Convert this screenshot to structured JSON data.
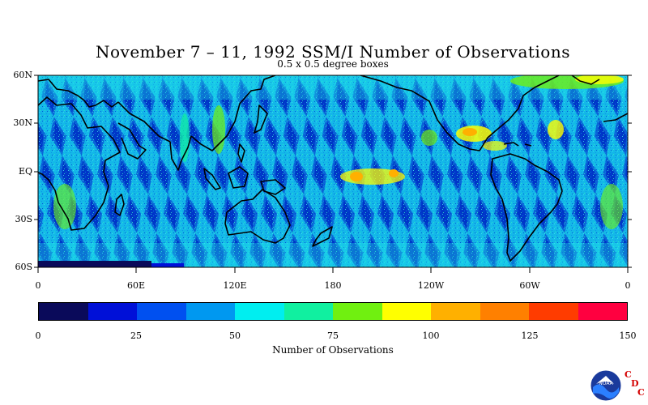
{
  "title": "November 7 – 11, 1992 SSM/I Number of Observations",
  "subtitle": "0.5 x 0.5 degree boxes",
  "map": {
    "lat_labels": [
      "60N",
      "30N",
      "EQ",
      "30S",
      "60S"
    ],
    "lat_values": [
      60,
      30,
      0,
      -30,
      -60
    ],
    "lon_labels": [
      "0",
      "60E",
      "120E",
      "180",
      "120W",
      "60W",
      "0"
    ],
    "lon_values": [
      0,
      60,
      120,
      180,
      240,
      300,
      360
    ],
    "lat_range": [
      -60,
      60
    ],
    "lon_range": [
      0,
      360
    ]
  },
  "colorbar": {
    "title": "Number of Observations",
    "tick_labels": [
      "0",
      "25",
      "50",
      "75",
      "100",
      "125",
      "150"
    ],
    "tick_values": [
      0,
      25,
      50,
      75,
      100,
      125,
      150
    ],
    "colors": [
      "#0a0a5a",
      "#0010d8",
      "#0050f0",
      "#0098f0",
      "#00eef0",
      "#10f0a0",
      "#70f010",
      "#ffff00",
      "#ffb000",
      "#ff8000",
      "#ff3c00",
      "#ff0040"
    ]
  },
  "logo": {
    "name": "NOAA",
    "cdc_letters": [
      "C",
      "D",
      "C"
    ]
  }
}
